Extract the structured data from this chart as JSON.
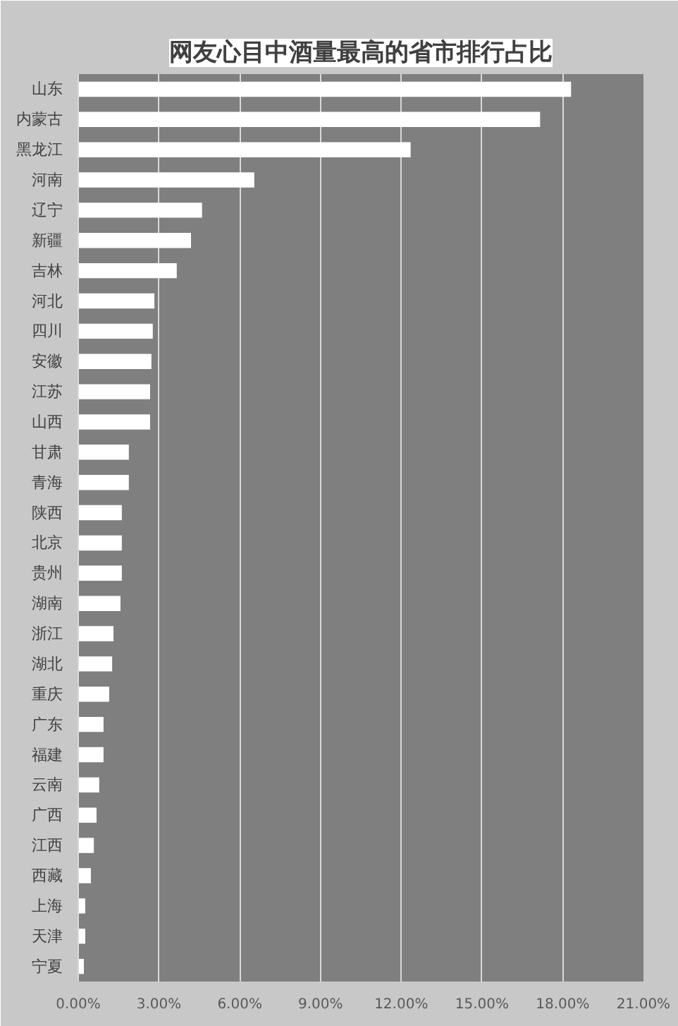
{
  "chart_data": {
    "type": "bar",
    "orientation": "horizontal",
    "title": "网友心目中酒量最高的省市排行占比",
    "categories": [
      "山东",
      "内蒙古",
      "黑龙江",
      "河南",
      "辽宁",
      "新疆",
      "吉林",
      "河北",
      "四川",
      "安徽",
      "江苏",
      "山西",
      "甘肃",
      "青海",
      "陕西",
      "北京",
      "贵州",
      "湖南",
      "浙江",
      "湖北",
      "重庆",
      "广东",
      "福建",
      "云南",
      "广西",
      "江西",
      "西藏",
      "上海",
      "天津",
      "宁夏"
    ],
    "values": [
      18.31,
      17.16,
      12.35,
      6.54,
      4.6,
      4.19,
      3.66,
      2.83,
      2.77,
      2.72,
      2.67,
      2.67,
      1.88,
      1.88,
      1.62,
      1.62,
      1.62,
      1.57,
      1.31,
      1.26,
      1.15,
      0.94,
      0.94,
      0.78,
      0.68,
      0.58,
      0.47,
      0.26,
      0.26,
      0.21
    ],
    "color": "#ffffff",
    "xlim": [
      0,
      21
    ],
    "xticks": [
      {
        "value": 0,
        "label": "0.00%"
      },
      {
        "value": 3,
        "label": "3.00%"
      },
      {
        "value": 6,
        "label": "6.00%"
      },
      {
        "value": 9,
        "label": "9.00%"
      },
      {
        "value": 12,
        "label": "12.00%"
      },
      {
        "value": 15,
        "label": "15.00%"
      },
      {
        "value": 18,
        "label": "18.00%"
      },
      {
        "value": 21,
        "label": "21.00%"
      }
    ],
    "grid": "x"
  }
}
